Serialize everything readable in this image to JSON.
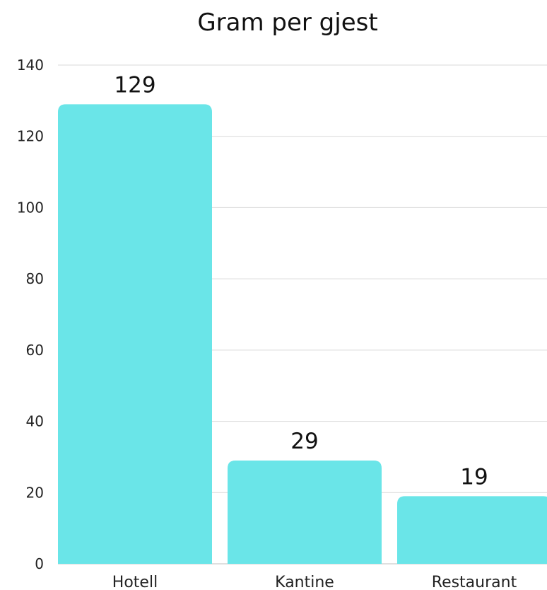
{
  "chart_data": {
    "type": "bar",
    "title": "Gram per gjest",
    "xlabel": "",
    "ylabel": "",
    "categories": [
      "Hotell",
      "Kantine",
      "Restaurant"
    ],
    "values": [
      129,
      29,
      19
    ],
    "data_labels": [
      "129",
      "29",
      "19"
    ],
    "ylim": [
      0,
      140
    ],
    "y_ticks": [
      0,
      20,
      40,
      60,
      80,
      100,
      120,
      140
    ],
    "grid": true,
    "legend": "none",
    "bar_color": "#6ae5e8"
  }
}
